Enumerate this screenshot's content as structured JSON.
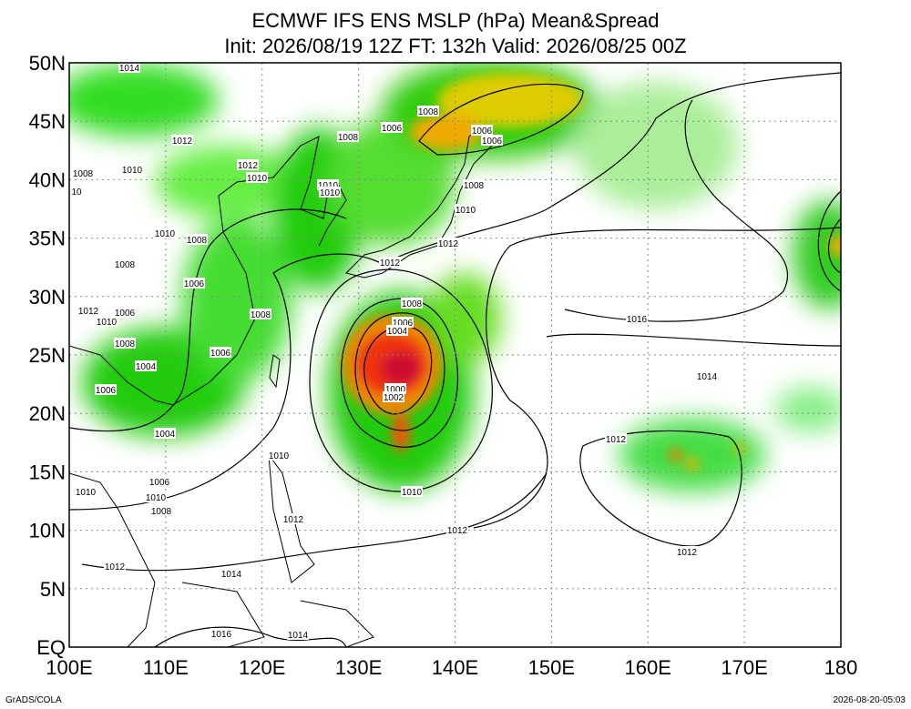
{
  "header": {
    "title": "ECMWF IFS ENS MSLP (hPa) Mean&Spread",
    "subtitle": "Init: 2026/08/19 12Z  FT: 132h  Valid: 2026/08/25 00Z"
  },
  "axes": {
    "lat_labels": [
      "50N",
      "45N",
      "40N",
      "35N",
      "30N",
      "25N",
      "20N",
      "15N",
      "10N",
      "5N",
      "EQ"
    ],
    "lon_labels": [
      "100E",
      "110E",
      "120E",
      "130E",
      "140E",
      "150E",
      "160E",
      "170E",
      "180"
    ]
  },
  "contour_labels": [
    "1014",
    "1012",
    "1010",
    "1008",
    "10",
    "1012",
    "1010",
    "1008",
    "1006",
    "1008",
    "1006",
    "1006",
    "1010",
    "1010",
    "1008",
    "1010",
    "1012",
    "1010",
    "1008",
    "1008",
    "1006",
    "1012",
    "1008",
    "1006",
    "1004",
    "1012",
    "1010",
    "1006",
    "1008",
    "1016",
    "1008",
    "1006",
    "1004",
    "1014",
    "1006",
    "1000",
    "1002",
    "1004",
    "1012",
    "1010",
    "1006",
    "1010",
    "1010",
    "1010",
    "1008",
    "1012",
    "1012",
    "1012",
    "1012",
    "1014",
    "1016",
    "1014"
  ],
  "footer": {
    "left": "GrADS/COLA",
    "right": "2026-08-20-05:03"
  }
}
